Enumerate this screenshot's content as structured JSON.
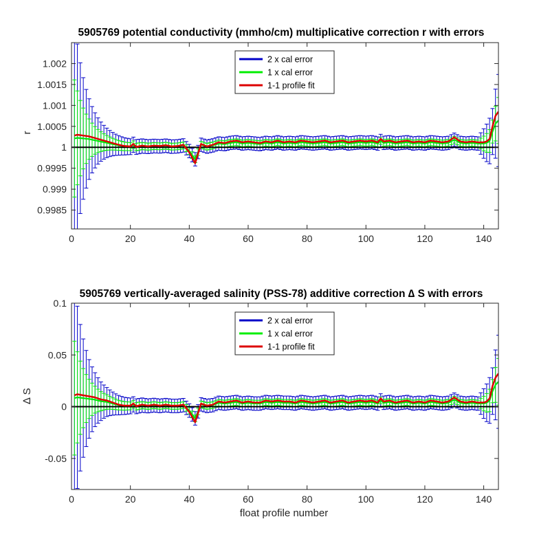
{
  "chart_data": [
    {
      "type": "line",
      "title": "5905769 potential conductivity (mmho/cm) multiplicative correction r with errors",
      "xlabel": "",
      "ylabel": "r",
      "xlim": [
        0,
        145
      ],
      "ylim": [
        0.99805,
        1.0025
      ],
      "xticks": [
        0,
        20,
        40,
        60,
        80,
        100,
        120,
        140
      ],
      "yticks": [
        0.9985,
        0.999,
        0.9995,
        1,
        1.0005,
        1.001,
        1.0015,
        1.002
      ],
      "ytick_labels": [
        "0.9985",
        "0.999",
        "0.9995",
        "1",
        "1.0005",
        "1.001",
        "1.0015",
        "1.002"
      ],
      "legend_position": "top-center",
      "reference_line": 1,
      "series": [
        {
          "name": "2 x cal error",
          "color": "#0000c8",
          "role": "errorbar",
          "err_start": 0.0028,
          "err_floor": 0.00016,
          "err_decay": 4.2,
          "err_end": 0.0011
        },
        {
          "name": "1 x cal error",
          "color": "#00ee00",
          "role": "errorbar",
          "err_start": 0.0014,
          "err_floor": 8e-05,
          "err_decay": 4.2,
          "err_end": 0.00055
        },
        {
          "name": "1-1 profile fit",
          "color": "#dd0000",
          "role": "line",
          "x": [
            1,
            2,
            4,
            6,
            8,
            10,
            12,
            14,
            16,
            18,
            20,
            21,
            22,
            24,
            26,
            28,
            30,
            32,
            34,
            36,
            38,
            40,
            42,
            44,
            46,
            48,
            50,
            52,
            54,
            56,
            58,
            60,
            62,
            64,
            66,
            68,
            70,
            72,
            74,
            76,
            78,
            80,
            82,
            84,
            86,
            88,
            90,
            92,
            94,
            96,
            98,
            100,
            102,
            104,
            105,
            106,
            108,
            110,
            112,
            114,
            116,
            118,
            120,
            122,
            124,
            126,
            128,
            130,
            132,
            134,
            136,
            138,
            140,
            141,
            142,
            143,
            144,
            145
          ],
          "y": [
            1.00028,
            1.0003,
            1.00028,
            1.00026,
            1.00022,
            1.00018,
            1.00014,
            1.0001,
            1.00006,
            1.00003,
            1.00002,
            1.00008,
            1.00001,
            1.00004,
            1.00002,
            1.00004,
            1.00003,
            1.00005,
            1.00002,
            1.00003,
            1.00006,
            0.99988,
            0.99962,
            1.00008,
            1.00002,
            1.00006,
            1.00012,
            1.0001,
            1.00014,
            1.00016,
            1.00012,
            1.00014,
            1.00012,
            1.0001,
            1.00014,
            1.00012,
            1.00016,
            1.00012,
            1.00014,
            1.00012,
            1.00016,
            1.00014,
            1.00012,
            1.00014,
            1.00016,
            1.00012,
            1.00014,
            1.00016,
            1.00012,
            1.00014,
            1.00016,
            1.00014,
            1.00016,
            1.00012,
            1.0002,
            1.00014,
            1.00016,
            1.00012,
            1.00014,
            1.00016,
            1.00012,
            1.00014,
            1.00012,
            1.00016,
            1.00014,
            1.00012,
            1.00014,
            1.00024,
            1.00014,
            1.00012,
            1.00014,
            1.00012,
            1.00012,
            1.00014,
            1.0002,
            1.0005,
            1.00075,
            1.00085
          ]
        }
      ]
    },
    {
      "type": "line",
      "title": "5905769 vertically-averaged salinity (PSS-78) additive correction ∆ S with errors",
      "xlabel": "float profile number",
      "ylabel": "∆ S",
      "xlim": [
        0,
        145
      ],
      "ylim": [
        -0.08,
        0.1
      ],
      "xticks": [
        0,
        20,
        40,
        60,
        80,
        100,
        120,
        140
      ],
      "yticks": [
        -0.05,
        0,
        0.05,
        0.1
      ],
      "ytick_labels": [
        "-0.05",
        "0",
        "0.05",
        "0.1"
      ],
      "legend_position": "top-center",
      "reference_line": 0,
      "series": [
        {
          "name": "2 x cal error",
          "color": "#0000c8",
          "role": "errorbar",
          "err_start": 0.11,
          "err_floor": 0.0065,
          "err_decay": 4.2,
          "err_end": 0.045
        },
        {
          "name": "1 x cal error",
          "color": "#00ee00",
          "role": "errorbar",
          "err_start": 0.055,
          "err_floor": 0.0032,
          "err_decay": 4.2,
          "err_end": 0.0225
        },
        {
          "name": "1-1 profile fit",
          "color": "#dd0000",
          "role": "line",
          "x": [
            1,
            2,
            4,
            6,
            8,
            10,
            12,
            14,
            16,
            18,
            20,
            21,
            22,
            24,
            26,
            28,
            30,
            32,
            34,
            36,
            38,
            40,
            42,
            44,
            46,
            48,
            50,
            52,
            54,
            56,
            58,
            60,
            62,
            64,
            66,
            68,
            70,
            72,
            74,
            76,
            78,
            80,
            82,
            84,
            86,
            88,
            90,
            92,
            94,
            96,
            98,
            100,
            102,
            104,
            105,
            106,
            108,
            110,
            112,
            114,
            116,
            118,
            120,
            122,
            124,
            126,
            128,
            130,
            132,
            134,
            136,
            138,
            140,
            141,
            142,
            143,
            144,
            145
          ],
          "y": [
            0.011,
            0.012,
            0.011,
            0.01,
            0.009,
            0.007,
            0.006,
            0.004,
            0.002,
            0.001,
            0.001,
            0.003,
            0.0005,
            0.002,
            0.001,
            0.002,
            0.001,
            0.002,
            0.001,
            0.001,
            0.002,
            -0.005,
            -0.015,
            0.003,
            0.001,
            0.002,
            0.005,
            0.004,
            0.005,
            0.006,
            0.004,
            0.005,
            0.004,
            0.004,
            0.006,
            0.005,
            0.006,
            0.005,
            0.005,
            0.004,
            0.006,
            0.005,
            0.004,
            0.005,
            0.006,
            0.004,
            0.005,
            0.006,
            0.004,
            0.005,
            0.006,
            0.005,
            0.006,
            0.004,
            0.008,
            0.005,
            0.006,
            0.004,
            0.005,
            0.006,
            0.004,
            0.005,
            0.004,
            0.006,
            0.005,
            0.004,
            0.005,
            0.009,
            0.005,
            0.004,
            0.005,
            0.004,
            0.004,
            0.005,
            0.008,
            0.02,
            0.028,
            0.032
          ]
        }
      ]
    }
  ]
}
